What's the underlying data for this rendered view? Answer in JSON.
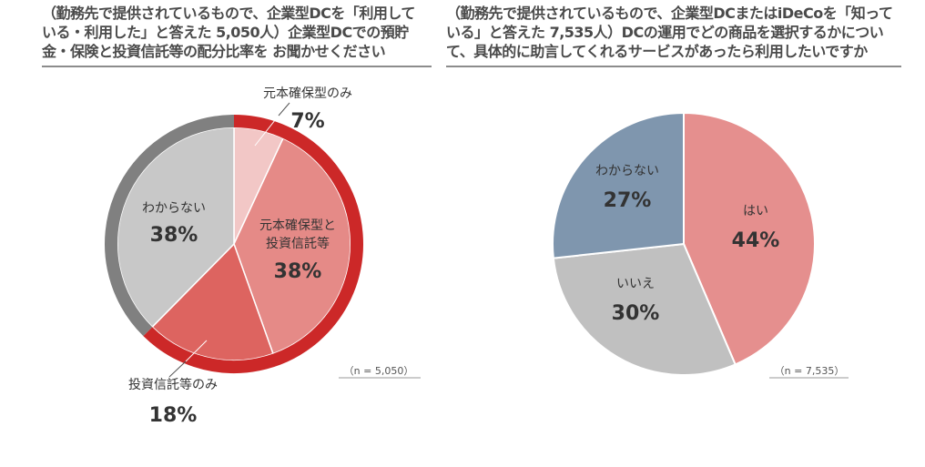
{
  "left_panel": {
    "title_lines": [
      "（勤務先で提供されているもので、企業型DCを「利用して",
      "いる・利用した」と答えた 5,050人）企業型DCでの預貯",
      "金・保険と投資信託等の配分比率を お聞かせください"
    ]
  },
  "right_panel": {
    "title_lines": [
      "（勤務先で提供されているもので、企業型DCまたはiDeCoを「知って",
      "いる」と答えた 7,535人）DCの運用でどの商品を選択するかについ",
      "て、具体的に助言してくれるサービスがあったら利用したいですか"
    ]
  },
  "chart_data": [
    {
      "type": "pie",
      "sample_note": "（n = 5,050）",
      "slices": [
        {
          "label": "元本確保型のみ",
          "value": 7,
          "display": "7%",
          "color": "#f2c7c6"
        },
        {
          "label": "元本確保型と\n投資信託等",
          "value": 38,
          "display": "38%",
          "color": "#e58a87"
        },
        {
          "label": "投資信託等のみ",
          "value": 18,
          "display": "18%",
          "color": "#dd6460"
        },
        {
          "label": "わからない",
          "value": 38,
          "display": "38%",
          "color": "#c8c8c8"
        }
      ],
      "ring_groups": [
        {
          "slices": [
            0,
            1,
            2
          ],
          "color": "#cc2828"
        },
        {
          "slices": [
            3
          ],
          "color": "#808080"
        }
      ]
    },
    {
      "type": "pie",
      "sample_note": "（n = 7,535）",
      "slices": [
        {
          "label": "はい",
          "value": 44,
          "display": "44%",
          "color": "#e58f8e"
        },
        {
          "label": "いいえ",
          "value": 30,
          "display": "30%",
          "color": "#c0c0c0"
        },
        {
          "label": "わからない",
          "value": 27,
          "display": "27%",
          "color": "#7f96ae"
        }
      ]
    }
  ]
}
